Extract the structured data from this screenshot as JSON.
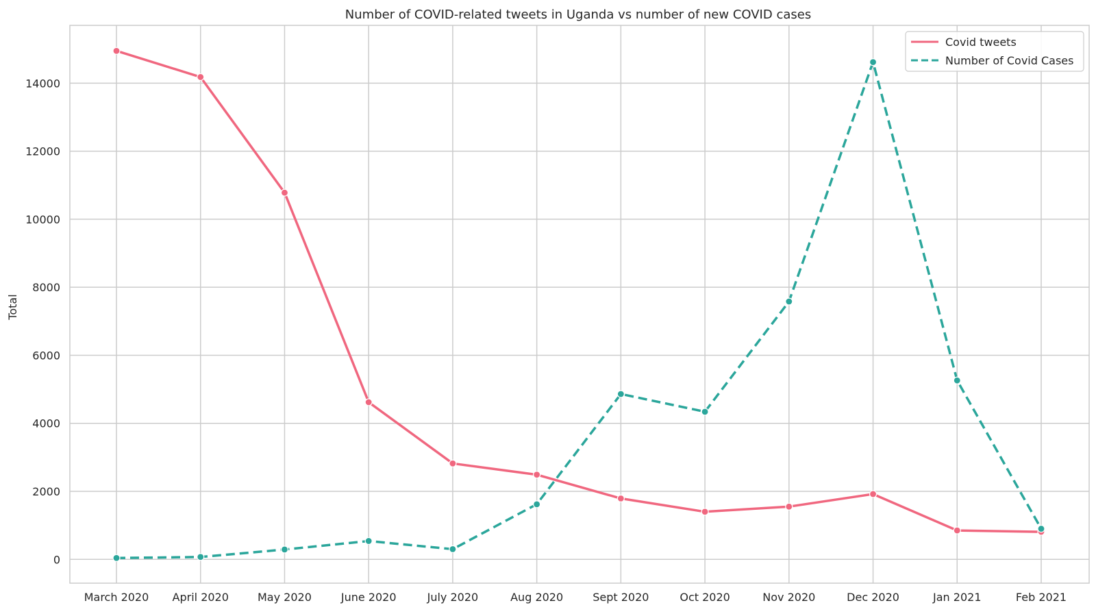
{
  "chart_data": {
    "type": "line",
    "title": "Number of COVID-related tweets in Uganda vs number of new COVID cases",
    "xlabel": "",
    "ylabel": "Total",
    "categories": [
      "March 2020",
      "April 2020",
      "May 2020",
      "June 2020",
      "July 2020",
      "Aug 2020",
      "Sept 2020",
      "Oct 2020",
      "Nov 2020",
      "Dec 2020",
      "Jan 2021",
      "Feb 2021"
    ],
    "ylim": [
      -700,
      15700
    ],
    "yticks": [
      0,
      2000,
      4000,
      6000,
      8000,
      10000,
      12000,
      14000
    ],
    "grid": true,
    "legend_position": "top-right",
    "series": [
      {
        "name": "Covid tweets",
        "style": "solid",
        "color": "#f0677f",
        "values": [
          14950,
          14180,
          10780,
          4620,
          2820,
          2490,
          1790,
          1400,
          1550,
          1920,
          850,
          810
        ]
      },
      {
        "name": "Number of Covid Cases",
        "style": "dashed",
        "color": "#2ba69b",
        "values": [
          40,
          70,
          290,
          540,
          300,
          1620,
          4860,
          4340,
          7580,
          14620,
          5260,
          900
        ]
      }
    ]
  }
}
